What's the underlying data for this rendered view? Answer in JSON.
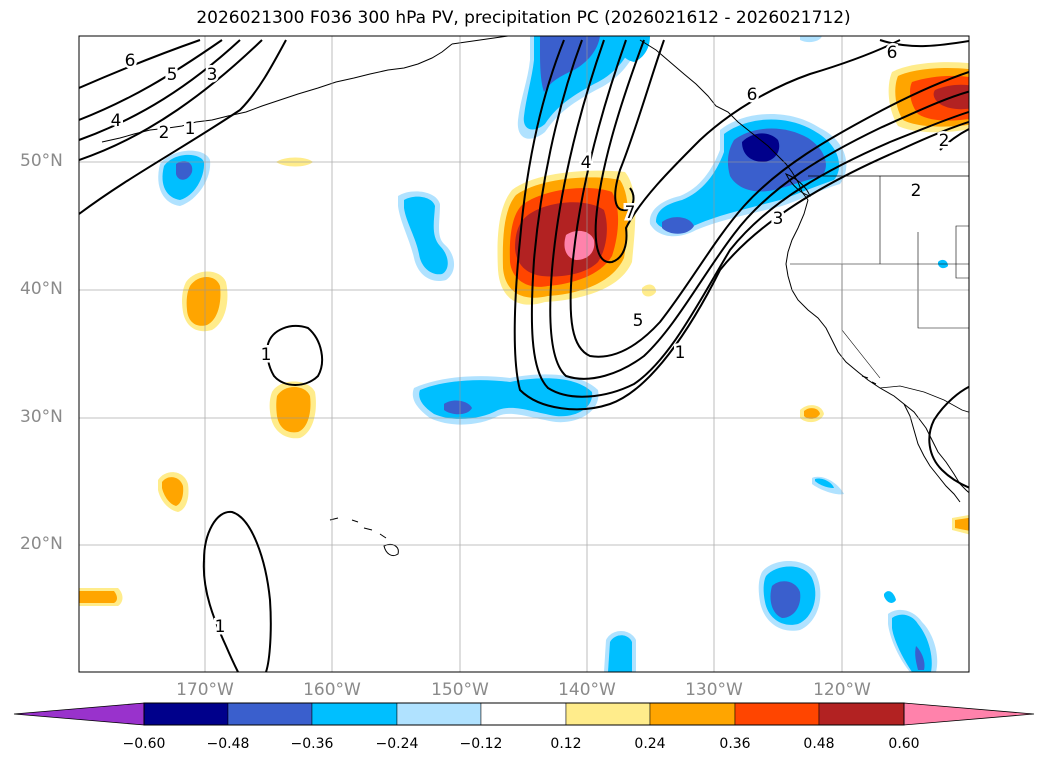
{
  "title": "2026021300 F036 300 hPa PV, precipitation PC (2026021612 - 2026021712)",
  "latitude_labels": [
    "50°N",
    "40°N",
    "30°N",
    "20°N"
  ],
  "longitude_labels": [
    "170°W",
    "160°W",
    "150°W",
    "140°W",
    "130°W",
    "120°W"
  ],
  "contour_labels": [
    "6",
    "5",
    "3",
    "4",
    "2",
    "1",
    "1",
    "6",
    "4",
    "7",
    "5",
    "1",
    "3",
    "2",
    "6",
    "2",
    "1"
  ],
  "colorbar": {
    "ticks": [
      "−0.60",
      "−0.48",
      "−0.36",
      "−0.24",
      "−0.12",
      "0.12",
      "0.24",
      "0.36",
      "0.48",
      "0.60"
    ],
    "colors": [
      "#9932CC",
      "#00008B",
      "#3A5FCD",
      "#00BFFF",
      "#B0E2FF",
      "#FFFFFF",
      "#FFEC8B",
      "#FFA500",
      "#FF4500",
      "#B22222",
      "#FF82AB"
    ]
  },
  "colors": {
    "pos1": "#FFEC8B",
    "pos2": "#FFA500",
    "pos3": "#FF4500",
    "pos4": "#B22222",
    "pos5": "#FF82AB",
    "neg1": "#B0E2FF",
    "neg2": "#00BFFF",
    "neg3": "#3A5FCD",
    "neg4": "#00008B"
  }
}
